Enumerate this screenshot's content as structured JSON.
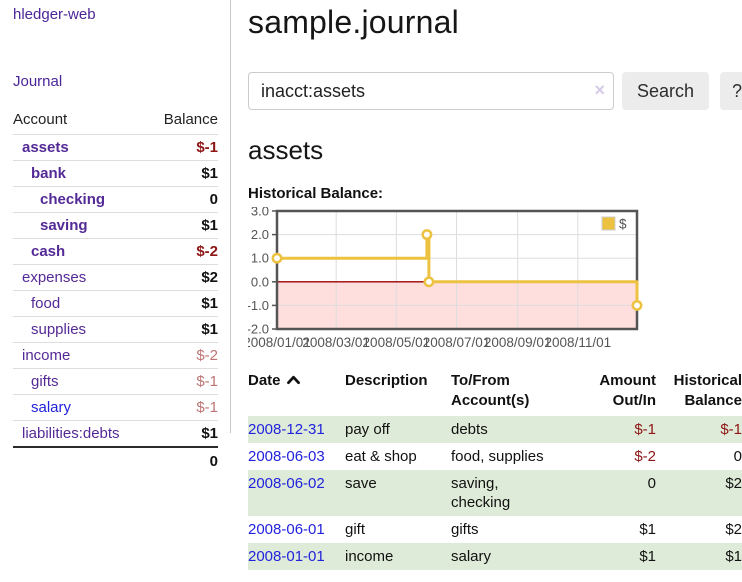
{
  "app": {
    "name": "hledger-web"
  },
  "sidebar": {
    "journal_label": "Journal",
    "account_col": "Account",
    "balance_col": "Balance",
    "accounts": [
      {
        "name": "assets",
        "balance": "$-1",
        "depth": 0,
        "bold": true,
        "neg": true,
        "blue": false
      },
      {
        "name": "bank",
        "balance": "$1",
        "depth": 1,
        "bold": true,
        "neg": false,
        "blue": false
      },
      {
        "name": "checking",
        "balance": "0",
        "depth": 2,
        "bold": true,
        "neg": false,
        "blue": false
      },
      {
        "name": "saving",
        "balance": "$1",
        "depth": 2,
        "bold": true,
        "neg": false,
        "blue": false
      },
      {
        "name": "cash",
        "balance": "$-2",
        "depth": 1,
        "bold": true,
        "neg": true,
        "blue": false
      },
      {
        "name": "expenses",
        "balance": "$2",
        "depth": 0,
        "bold": false,
        "neg": false,
        "blue": false
      },
      {
        "name": "food",
        "balance": "$1",
        "depth": 1,
        "bold": false,
        "neg": false,
        "blue": false
      },
      {
        "name": "supplies",
        "balance": "$1",
        "depth": 1,
        "bold": false,
        "neg": false,
        "blue": false
      },
      {
        "name": "income",
        "balance": "$-2",
        "depth": 0,
        "bold": false,
        "neg": true,
        "blue": false
      },
      {
        "name": "gifts",
        "balance": "$-1",
        "depth": 1,
        "bold": false,
        "neg": true,
        "blue": false
      },
      {
        "name": "salary",
        "balance": "$-1",
        "depth": 1,
        "bold": false,
        "neg": true,
        "blue": true
      },
      {
        "name": "liabilities:debts",
        "balance": "$1",
        "depth": 0,
        "bold": false,
        "neg": false,
        "blue": false
      }
    ],
    "total": "0"
  },
  "main": {
    "title": "sample.journal",
    "search": {
      "value": "inacct:assets",
      "clear_label": "×",
      "search_button": "Search",
      "help_button": "?"
    },
    "account_heading": "assets",
    "chart_title": "Historical Balance:"
  },
  "chart_data": {
    "type": "line",
    "step": true,
    "title": "Historical Balance:",
    "series": [
      {
        "name": "$",
        "color": "#EDC240",
        "points": [
          {
            "date": "2008-01-01",
            "value": 1
          },
          {
            "date": "2008-06-01",
            "value": 2
          },
          {
            "date": "2008-06-03",
            "value": 0
          },
          {
            "date": "2008-12-31",
            "value": -1
          }
        ]
      }
    ],
    "x_range": [
      "2008-01-01",
      "2008-12-31"
    ],
    "x_ticks": [
      {
        "date": "2008-01-01",
        "label": "2008/01/01"
      },
      {
        "date": "2008-03-01",
        "label": "2008/03/01"
      },
      {
        "date": "2008-05-01",
        "label": "2008/05/01"
      },
      {
        "date": "2008-07-01",
        "label": "2008/07/01"
      },
      {
        "date": "2008-09-01",
        "label": "2008/09/01"
      },
      {
        "date": "2008-11-01",
        "label": "2008/11/01"
      }
    ],
    "y_ticks": [
      3.0,
      2.0,
      1.0,
      0.0,
      -1.0,
      -2.0
    ],
    "ylim": [
      -2,
      3
    ],
    "legend": {
      "label": "$",
      "position": "top-right"
    },
    "grid": true,
    "colors": {
      "negative_region": "#FFDEDE",
      "zero_line": "#990000",
      "gridline": "#dddddd",
      "border": "#545454",
      "axis_text": "#545454",
      "marker_fill": "#ffffff"
    }
  },
  "register": {
    "headers": {
      "date": "Date",
      "description": "Description",
      "accounts": "To/From\nAccount(s)",
      "amount": "Amount\nOut/In",
      "balance": "Historical\nBalance"
    },
    "sort": {
      "column": "date",
      "direction": "ascending"
    },
    "rows": [
      {
        "date": "2008-12-31",
        "description": "pay off",
        "accounts": "debts",
        "amount": "$-1",
        "amount_neg": true,
        "balance": "$-1",
        "balance_neg": true
      },
      {
        "date": "2008-06-03",
        "description": "eat & shop",
        "accounts": "food, supplies",
        "amount": "$-2",
        "amount_neg": true,
        "balance": "0",
        "balance_neg": false
      },
      {
        "date": "2008-06-02",
        "description": "save",
        "accounts": "saving,\nchecking",
        "amount": "0",
        "amount_neg": false,
        "balance": "$2",
        "balance_neg": false
      },
      {
        "date": "2008-06-01",
        "description": "gift",
        "accounts": "gifts",
        "amount": "$1",
        "amount_neg": false,
        "balance": "$2",
        "balance_neg": false
      },
      {
        "date": "2008-01-01",
        "description": "income",
        "accounts": "salary",
        "amount": "$1",
        "amount_neg": false,
        "balance": "$1",
        "balance_neg": false
      }
    ]
  }
}
